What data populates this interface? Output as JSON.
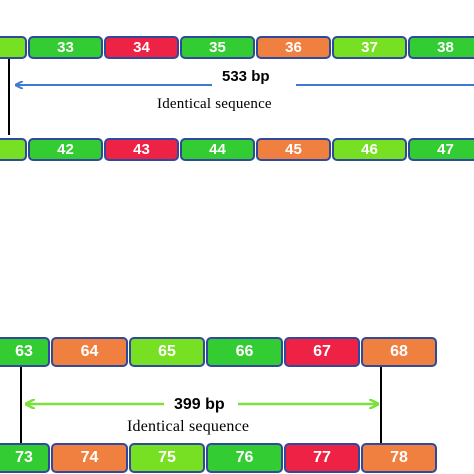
{
  "colors": {
    "green": "#33cc33",
    "lightgreen": "#77e022",
    "red": "#ee2244",
    "orange": "#f08040",
    "border": "#2f4a9c",
    "arrow_blue": "#3d7bd0",
    "arrow_green": "#7be03a"
  },
  "diagram1": {
    "top_segments": [
      {
        "label": "",
        "color": "lightgreen"
      },
      {
        "label": "33",
        "color": "green"
      },
      {
        "label": "34",
        "color": "red"
      },
      {
        "label": "35",
        "color": "green"
      },
      {
        "label": "36",
        "color": "orange"
      },
      {
        "label": "37",
        "color": "lightgreen"
      },
      {
        "label": "38",
        "color": "green"
      }
    ],
    "bottom_segments": [
      {
        "label": "",
        "color": "lightgreen"
      },
      {
        "label": "42",
        "color": "green"
      },
      {
        "label": "43",
        "color": "red"
      },
      {
        "label": "44",
        "color": "green"
      },
      {
        "label": "45",
        "color": "orange"
      },
      {
        "label": "46",
        "color": "lightgreen"
      },
      {
        "label": "47",
        "color": "green"
      }
    ],
    "length_label": "533 bp",
    "description": "Identical sequence"
  },
  "diagram2": {
    "top_segments": [
      {
        "label": "63",
        "color": "green"
      },
      {
        "label": "64",
        "color": "orange"
      },
      {
        "label": "65",
        "color": "lightgreen"
      },
      {
        "label": "66",
        "color": "green"
      },
      {
        "label": "67",
        "color": "red"
      },
      {
        "label": "68",
        "color": "orange"
      }
    ],
    "bottom_segments": [
      {
        "label": "73",
        "color": "green"
      },
      {
        "label": "74",
        "color": "orange"
      },
      {
        "label": "75",
        "color": "lightgreen"
      },
      {
        "label": "76",
        "color": "green"
      },
      {
        "label": "77",
        "color": "red"
      },
      {
        "label": "78",
        "color": "orange"
      }
    ],
    "length_label": "399 bp",
    "description": "Identical sequence"
  }
}
